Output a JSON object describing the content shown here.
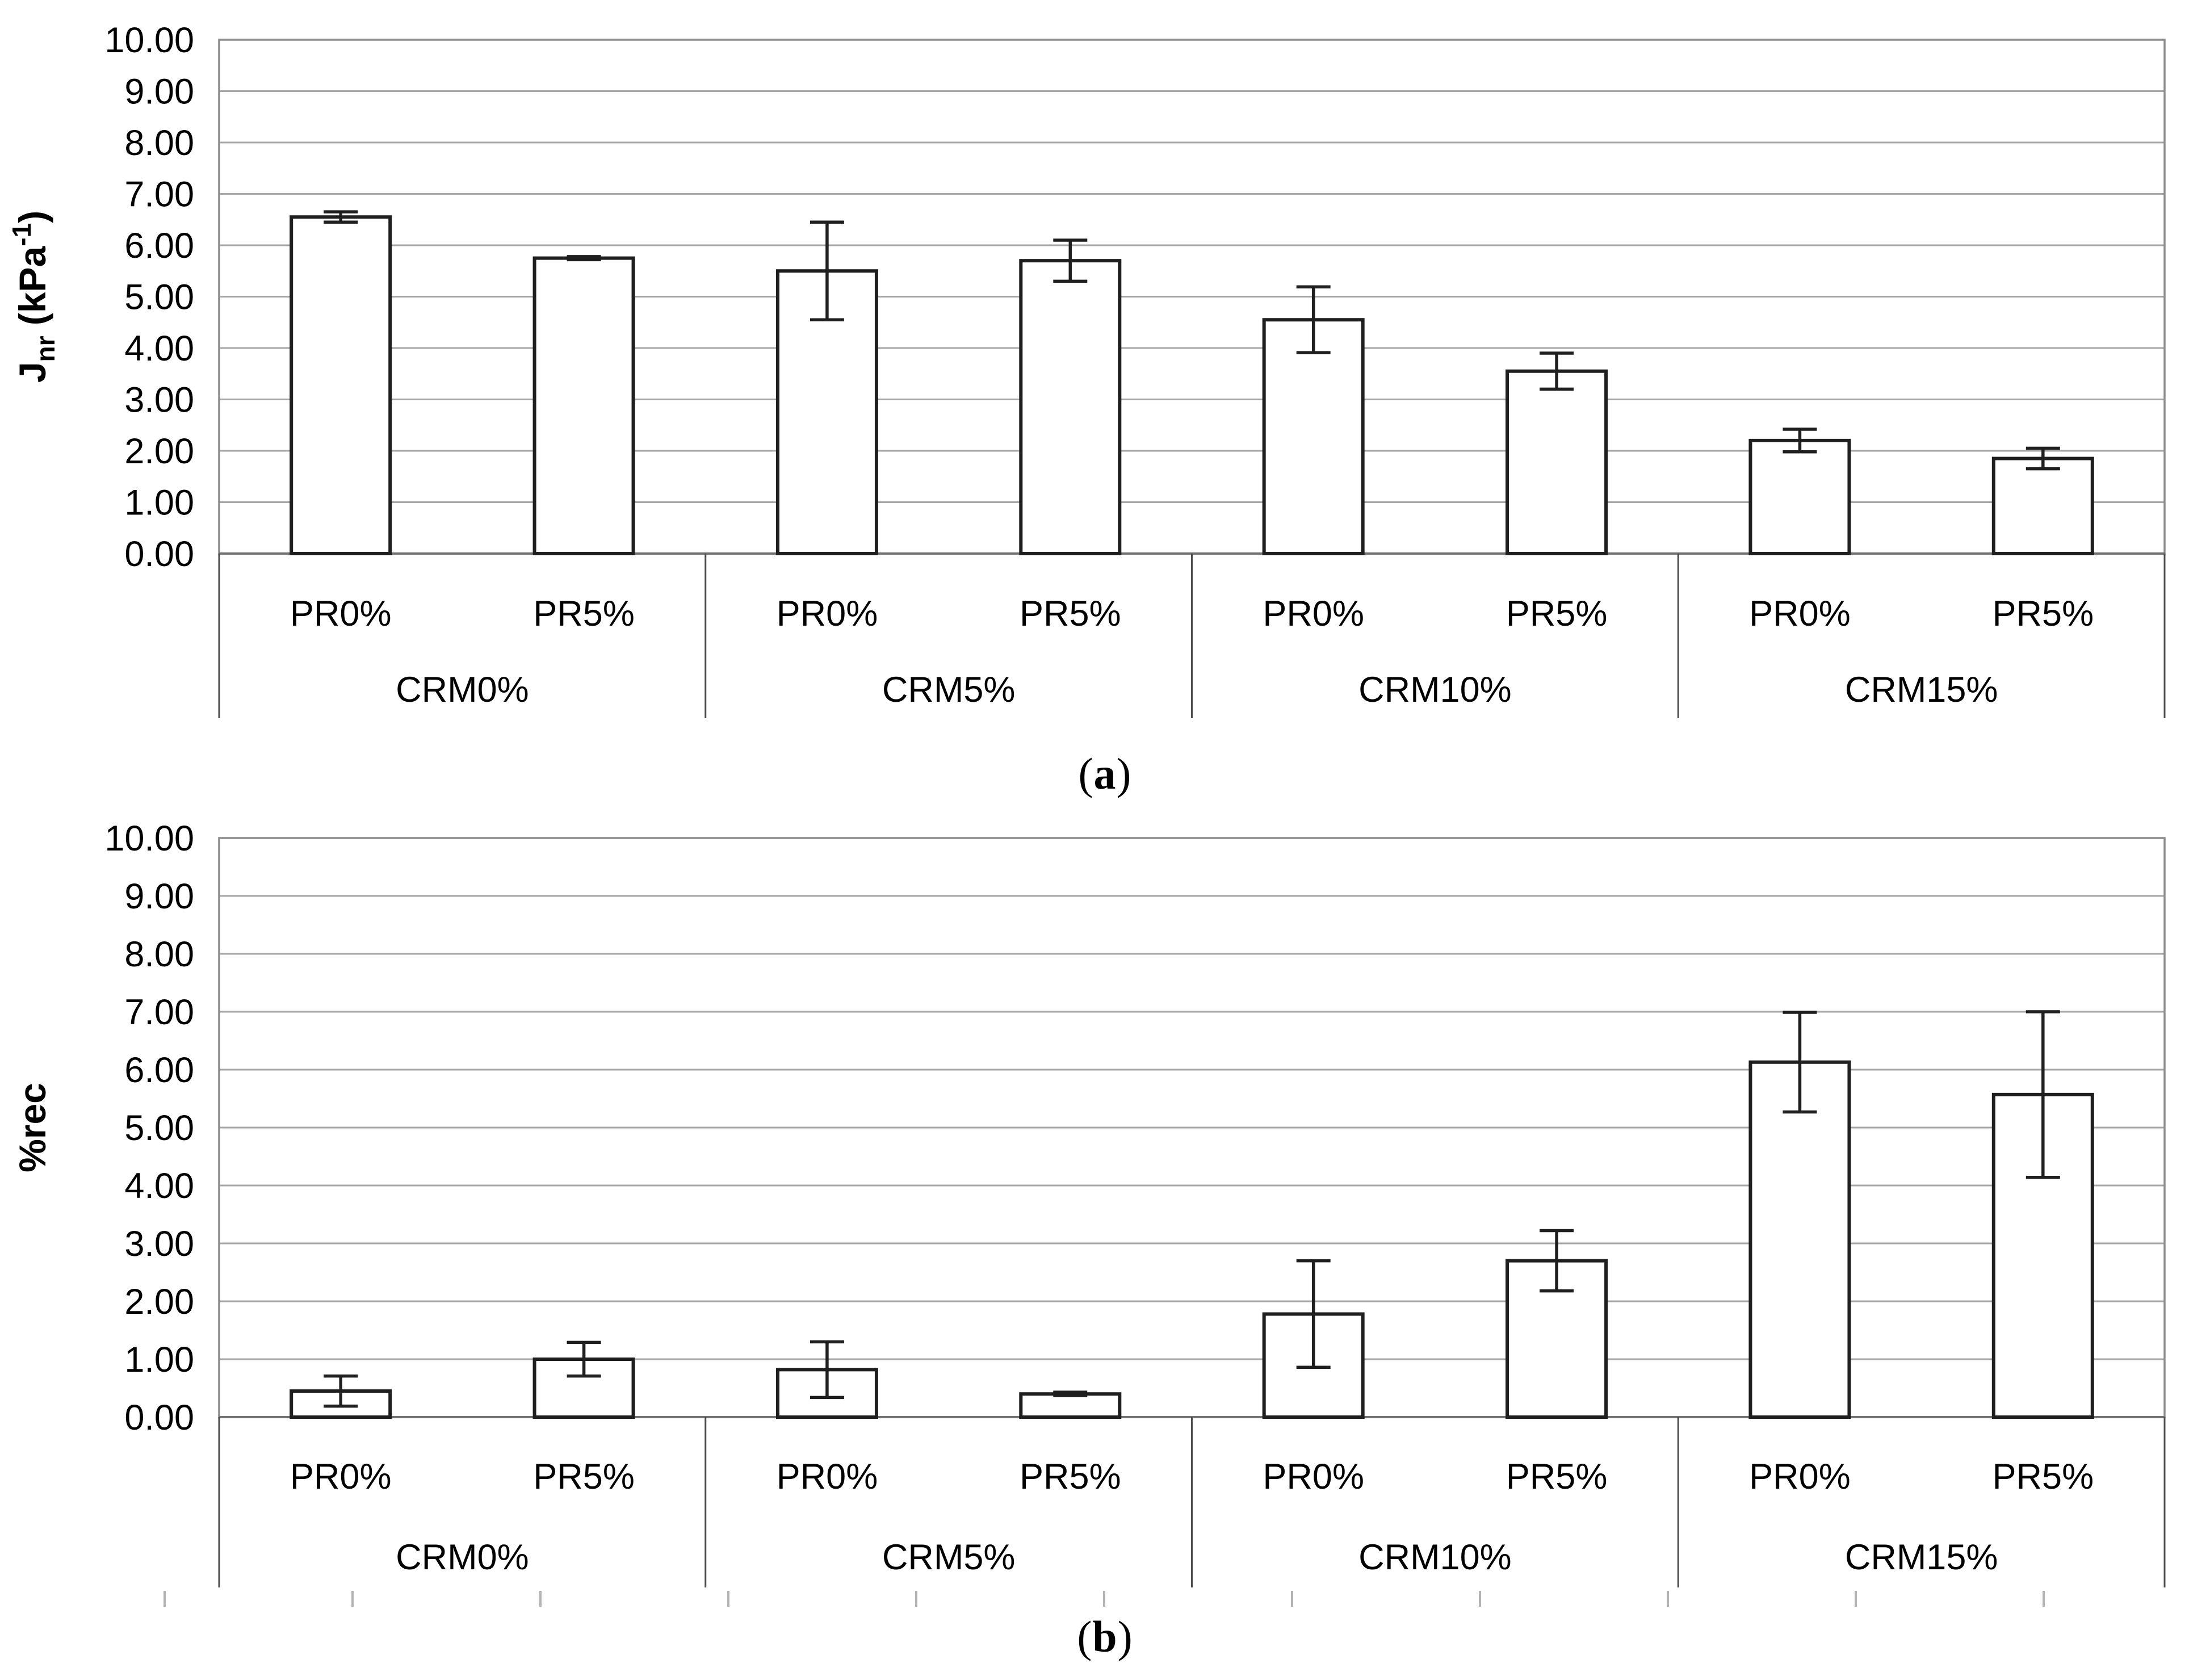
{
  "figure": {
    "background": "#ffffff",
    "captions": [
      {
        "prefix": "(",
        "letter": "a",
        "suffix": ")"
      },
      {
        "prefix": "(",
        "letter": "b",
        "suffix": ")"
      }
    ],
    "colors": {
      "bar_fill": "#ffffff",
      "bar_stroke": "#1f1f1f",
      "gridline": "#a6a6a6",
      "plot_border": "#8c8c8c",
      "zero_axis": "#737373",
      "divider": "#4d4d4d",
      "minor_tick": "#b3b3b3",
      "text": "#000000"
    }
  },
  "chart_data": [
    {
      "type": "bar",
      "panel_label": "a",
      "title": "(a)",
      "ylabel": "Jnr (kPa-1)",
      "ylabel_parts": {
        "base": "J",
        "sub": "nr",
        "mid": " (kPa",
        "sup": "-1",
        "end": ")"
      },
      "xlabel": "",
      "ylim": [
        0,
        10
      ],
      "ytick_step": 1,
      "ytick_labels": [
        "0.00",
        "1.00",
        "2.00",
        "3.00",
        "4.00",
        "5.00",
        "6.00",
        "7.00",
        "8.00",
        "9.00",
        "10.00"
      ],
      "grid": true,
      "legend_position": "none",
      "groups": [
        "CRM0%",
        "CRM5%",
        "CRM10%",
        "CRM15%"
      ],
      "categories": [
        "PR0%",
        "PR5%"
      ],
      "series": [
        {
          "group": "CRM0%",
          "category": "PR0%",
          "value": 6.55,
          "error": 0.1
        },
        {
          "group": "CRM0%",
          "category": "PR5%",
          "value": 5.75,
          "error": 0.03
        },
        {
          "group": "CRM5%",
          "category": "PR0%",
          "value": 5.5,
          "error": 0.95
        },
        {
          "group": "CRM5%",
          "category": "PR5%",
          "value": 5.7,
          "error": 0.4
        },
        {
          "group": "CRM10%",
          "category": "PR0%",
          "value": 4.55,
          "error": 0.64
        },
        {
          "group": "CRM10%",
          "category": "PR5%",
          "value": 3.55,
          "error": 0.35
        },
        {
          "group": "CRM15%",
          "category": "PR0%",
          "value": 2.2,
          "error": 0.22
        },
        {
          "group": "CRM15%",
          "category": "PR5%",
          "value": 1.85,
          "error": 0.2
        }
      ],
      "bottom_tick_count": 0
    },
    {
      "type": "bar",
      "panel_label": "b",
      "title": "(b)",
      "ylabel": "%rec",
      "ylabel_parts": {
        "base": "%rec",
        "sub": "",
        "mid": "",
        "sup": "",
        "end": ""
      },
      "xlabel": "",
      "ylim": [
        0,
        10
      ],
      "ytick_step": 1,
      "ytick_labels": [
        "0.00",
        "1.00",
        "2.00",
        "3.00",
        "4.00",
        "5.00",
        "6.00",
        "7.00",
        "8.00",
        "9.00",
        "10.00"
      ],
      "grid": true,
      "legend_position": "none",
      "groups": [
        "CRM0%",
        "CRM5%",
        "CRM10%",
        "CRM15%"
      ],
      "categories": [
        "PR0%",
        "PR5%"
      ],
      "series": [
        {
          "group": "CRM0%",
          "category": "PR0%",
          "value": 0.45,
          "error": 0.26
        },
        {
          "group": "CRM0%",
          "category": "PR5%",
          "value": 1.0,
          "error": 0.29
        },
        {
          "group": "CRM5%",
          "category": "PR0%",
          "value": 0.82,
          "error": 0.48
        },
        {
          "group": "CRM5%",
          "category": "PR5%",
          "value": 0.4,
          "error": 0.03
        },
        {
          "group": "CRM10%",
          "category": "PR0%",
          "value": 1.78,
          "error": 0.92
        },
        {
          "group": "CRM10%",
          "category": "PR5%",
          "value": 2.7,
          "error": 0.52
        },
        {
          "group": "CRM15%",
          "category": "PR0%",
          "value": 6.13,
          "error": 0.86
        },
        {
          "group": "CRM15%",
          "category": "PR5%",
          "value": 5.57,
          "error": 1.43
        }
      ],
      "bottom_tick_count": 11
    }
  ]
}
